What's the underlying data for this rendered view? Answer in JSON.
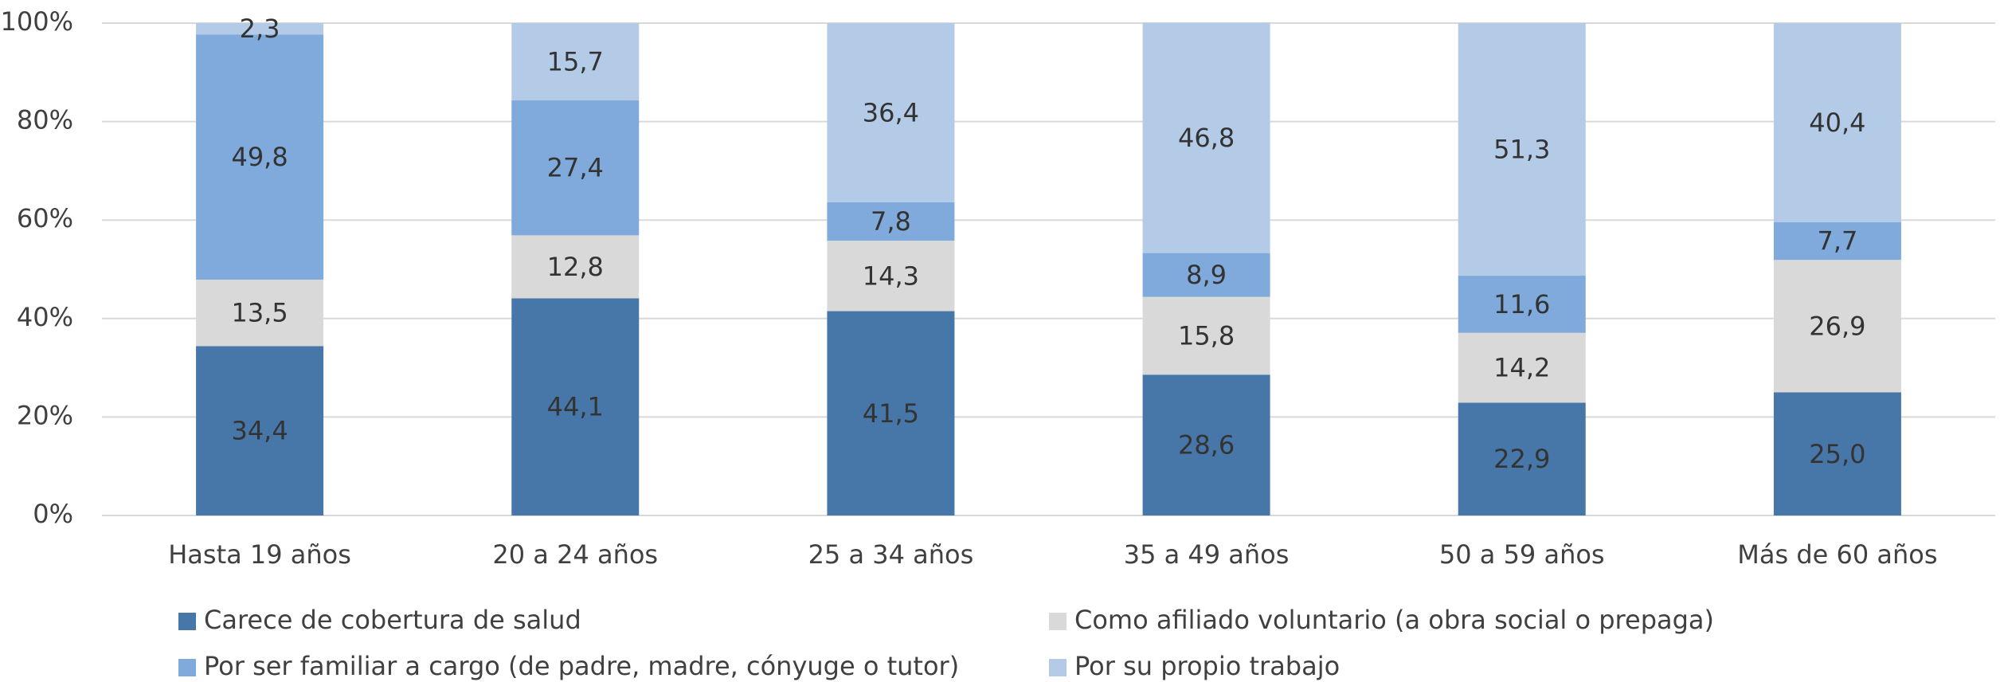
{
  "chart_data": {
    "type": "stacked_bar",
    "categories": [
      "Hasta 19 años",
      "20 a 24 años",
      "25 a 34 años",
      "35 a 49 años",
      "50 a 59 años",
      "Más de 60 años"
    ],
    "series": [
      {
        "name": "Carece de cobertura de salud",
        "color": "#4677a8",
        "values": [
          34.4,
          44.1,
          41.5,
          28.6,
          22.9,
          25.0
        ],
        "value_labels": [
          "34,4",
          "44,1",
          "41,5",
          "28,6",
          "22,9",
          "25,0"
        ]
      },
      {
        "name": "Como afiliado voluntario (a obra social o prepaga)",
        "color": "#d9d9d9",
        "values": [
          13.5,
          12.8,
          14.3,
          15.8,
          14.2,
          26.9
        ],
        "value_labels": [
          "13,5",
          "12,8",
          "14,3",
          "15,8",
          "14,2",
          "26,9"
        ]
      },
      {
        "name": "Por ser familiar a cargo (de padre, madre, cónyuge o tutor)",
        "color": "#7faadb",
        "values": [
          49.8,
          27.4,
          7.8,
          8.9,
          11.6,
          7.7
        ],
        "value_labels": [
          "49,8",
          "27,4",
          "7,8",
          "8,9",
          "11,6",
          "7,7"
        ]
      },
      {
        "name": "Por su propio trabajo",
        "color": "#b4cbe8",
        "values": [
          2.3,
          15.7,
          36.4,
          46.8,
          51.3,
          40.4
        ],
        "value_labels": [
          "2,3",
          "15,7",
          "36,4",
          "46,8",
          "51,3",
          "40,4"
        ]
      }
    ],
    "ylim": [
      0,
      100
    ],
    "yticks": [
      {
        "value": 0,
        "label": "0%"
      },
      {
        "value": 20,
        "label": "20%"
      },
      {
        "value": 40,
        "label": "40%"
      },
      {
        "value": 60,
        "label": "60%"
      },
      {
        "value": 80,
        "label": "80%"
      },
      {
        "value": 100,
        "label": "100%"
      }
    ],
    "grid": true
  }
}
